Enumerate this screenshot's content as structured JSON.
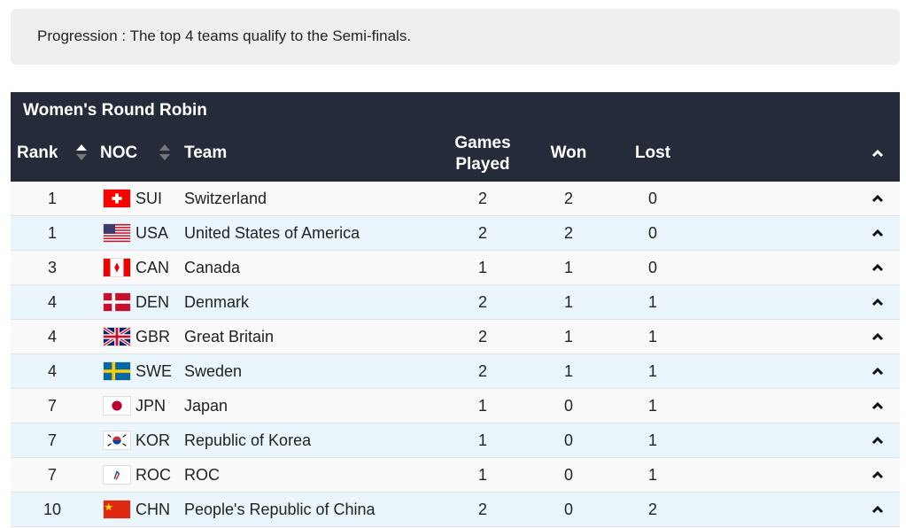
{
  "progression": "Progression : The top 4 teams qualify to the Semi-finals.",
  "table": {
    "title": "Women's Round Robin",
    "headers": {
      "rank": "Rank",
      "noc": "NOC",
      "team": "Team",
      "games_played": "Games Played",
      "won": "Won",
      "lost": "Lost"
    },
    "rows": [
      {
        "rank": "1",
        "noc": "SUI",
        "team": "Switzerland",
        "gp": "2",
        "won": "2",
        "lost": "0"
      },
      {
        "rank": "1",
        "noc": "USA",
        "team": "United States of America",
        "gp": "2",
        "won": "2",
        "lost": "0"
      },
      {
        "rank": "3",
        "noc": "CAN",
        "team": "Canada",
        "gp": "1",
        "won": "1",
        "lost": "0"
      },
      {
        "rank": "4",
        "noc": "DEN",
        "team": "Denmark",
        "gp": "2",
        "won": "1",
        "lost": "1"
      },
      {
        "rank": "4",
        "noc": "GBR",
        "team": "Great Britain",
        "gp": "2",
        "won": "1",
        "lost": "1"
      },
      {
        "rank": "4",
        "noc": "SWE",
        "team": "Sweden",
        "gp": "2",
        "won": "1",
        "lost": "1"
      },
      {
        "rank": "7",
        "noc": "JPN",
        "team": "Japan",
        "gp": "1",
        "won": "0",
        "lost": "1"
      },
      {
        "rank": "7",
        "noc": "KOR",
        "team": "Republic of Korea",
        "gp": "1",
        "won": "0",
        "lost": "1"
      },
      {
        "rank": "7",
        "noc": "ROC",
        "team": "ROC",
        "gp": "1",
        "won": "0",
        "lost": "1"
      },
      {
        "rank": "10",
        "noc": "CHN",
        "team": "People's Republic of China",
        "gp": "2",
        "won": "0",
        "lost": "2"
      }
    ]
  },
  "colors": {
    "header_bg": "#262b3a",
    "row_odd": "#f9f9f9",
    "row_even": "#eaf6fc"
  }
}
